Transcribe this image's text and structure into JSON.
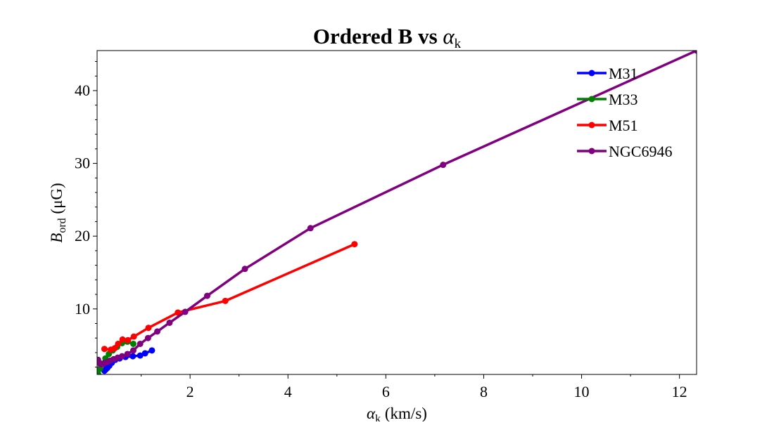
{
  "chart_data": {
    "type": "line",
    "title": "Ordered B vs ",
    "title_symbol": "α",
    "title_sub": "k",
    "xlabel_symbol": "α",
    "xlabel_sub": "k",
    "xlabel_rest": " (km/s)",
    "ylabel_main": "B",
    "ylabel_sub": "ord",
    "ylabel_rest": " (μG)",
    "xlim": [
      0.1,
      12.35
    ],
    "ylim": [
      1.0,
      45.5
    ],
    "x_ticks": [
      2,
      4,
      6,
      8,
      10,
      12
    ],
    "y_ticks": [
      10,
      20,
      30,
      40
    ],
    "grid": false,
    "legend_position": "upper right",
    "series": [
      {
        "name": "M31",
        "color": "#0000ff",
        "x": [
          0.25,
          0.28,
          0.31,
          0.35,
          0.4,
          0.47,
          0.56,
          0.68,
          0.83,
          0.98,
          1.08,
          1.22
        ],
        "y": [
          1.5,
          1.7,
          1.9,
          2.2,
          2.6,
          3.0,
          3.2,
          3.4,
          3.5,
          3.6,
          3.9,
          4.3
        ]
      },
      {
        "name": "M33",
        "color": "#008000",
        "x": [
          0.12,
          0.16,
          0.21,
          0.27,
          0.34,
          0.42,
          0.51,
          0.61,
          0.72,
          0.84
        ],
        "y": [
          1.1,
          1.8,
          2.5,
          3.2,
          3.8,
          4.3,
          4.8,
          5.3,
          5.5,
          5.2
        ]
      },
      {
        "name": "M51",
        "color": "#ff0000",
        "x": [
          0.25,
          0.38,
          0.46,
          0.53,
          0.62,
          0.73,
          0.85,
          1.15,
          1.75,
          2.72,
          5.36
        ],
        "y": [
          4.5,
          4.4,
          4.6,
          5.2,
          5.8,
          5.7,
          6.2,
          7.4,
          9.5,
          11.1,
          18.9
        ]
      },
      {
        "name": "NGC6946",
        "color": "#800080",
        "x": [
          0.12,
          0.14,
          0.17,
          0.21,
          0.26,
          0.31,
          0.37,
          0.44,
          0.52,
          0.61,
          0.72,
          0.84,
          0.98,
          1.14,
          1.33,
          1.58,
          1.9,
          2.35,
          3.12,
          4.46,
          7.17,
          12.35
        ],
        "y": [
          3.0,
          2.6,
          2.4,
          2.4,
          2.6,
          2.7,
          2.9,
          3.1,
          3.3,
          3.5,
          3.8,
          4.3,
          5.2,
          6.0,
          6.9,
          8.1,
          9.6,
          11.8,
          15.5,
          21.1,
          29.8,
          45.5
        ]
      }
    ]
  }
}
